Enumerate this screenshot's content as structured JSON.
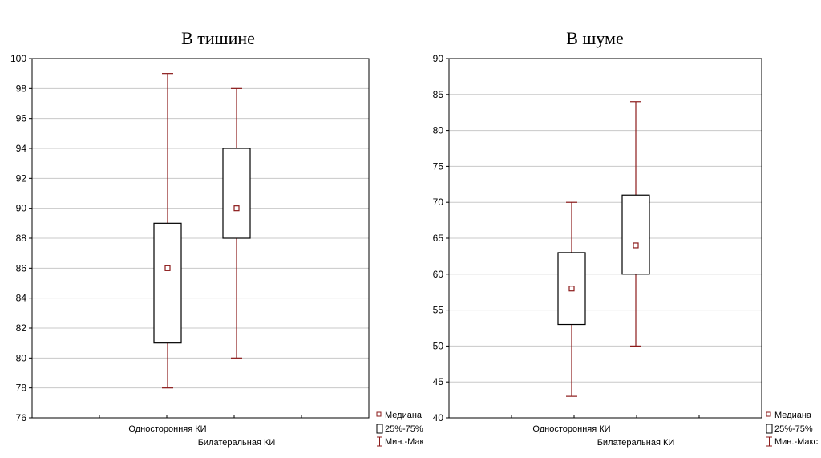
{
  "chart_data": [
    {
      "type": "box",
      "title": "В тишине",
      "categories": [
        "Односторонняя КИ",
        "Билатеральная КИ"
      ],
      "ylim": [
        76,
        100
      ],
      "yticks": [
        76,
        78,
        80,
        82,
        84,
        86,
        88,
        90,
        92,
        94,
        96,
        98,
        100
      ],
      "boxes": [
        {
          "min": 78,
          "q1": 81,
          "median": 86,
          "q3": 89,
          "max": 99
        },
        {
          "min": 80,
          "q1": 88,
          "median": 90,
          "q3": 94,
          "max": 98
        }
      ],
      "grid": true,
      "legend_position": "bottom-right",
      "legend": {
        "median": "Медиана",
        "box": "25%-75%",
        "whisker": "Мин.-Мак"
      }
    },
    {
      "type": "box",
      "title": "В шуме",
      "categories": [
        "Односторонняя КИ",
        "Билатеральная КИ"
      ],
      "ylim": [
        40,
        90
      ],
      "yticks": [
        40,
        45,
        50,
        55,
        60,
        65,
        70,
        75,
        80,
        85,
        90
      ],
      "boxes": [
        {
          "min": 43,
          "q1": 53,
          "median": 58,
          "q3": 63,
          "max": 70
        },
        {
          "min": 50,
          "q1": 60,
          "median": 64,
          "q3": 71,
          "max": 84
        }
      ],
      "grid": true,
      "legend_position": "bottom-right",
      "legend": {
        "median": "Медиана",
        "box": "25%-75%",
        "whisker": "Мин.-Макс."
      }
    }
  ],
  "colors": {
    "whisker": "#8b1a1a",
    "median": "#8b1a1a",
    "box": "#000000",
    "grid": "#c8c8c8"
  }
}
